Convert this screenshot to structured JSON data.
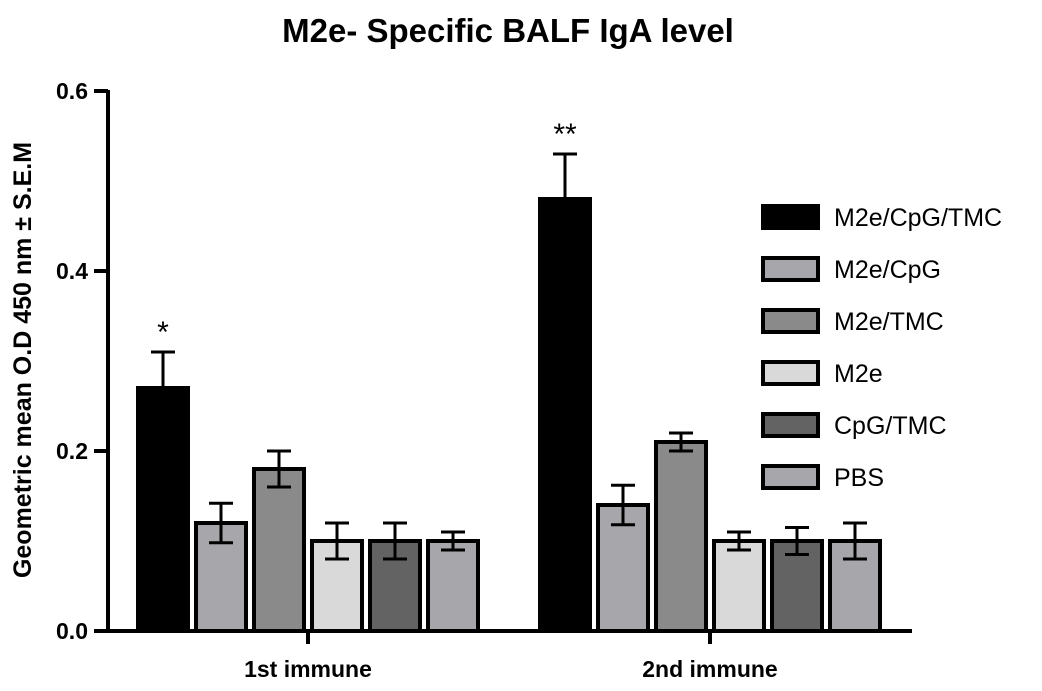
{
  "chart_data": {
    "type": "bar",
    "title": "M2e- Specific BALF IgA level",
    "xlabel": "",
    "ylabel": "Geometric mean O.D 450 nm ± S.E.M",
    "ylim": [
      0,
      0.6
    ],
    "yticks": [
      0.0,
      0.2,
      0.4,
      0.6
    ],
    "ytick_labels": [
      "0.0",
      "0.2",
      "0.4",
      "0.6"
    ],
    "grid": false,
    "legend_position": "right",
    "categories": [
      "1st immune",
      "2nd immune"
    ],
    "series": [
      {
        "name": "M2e/CpG/TMC",
        "color": "#000000",
        "values": [
          0.27,
          0.48
        ],
        "errors": [
          0.04,
          0.05
        ]
      },
      {
        "name": "M2e/CpG",
        "color": "#a6a6ab",
        "values": [
          0.12,
          0.14
        ],
        "errors": [
          0.022,
          0.022
        ]
      },
      {
        "name": "M2e/TMC",
        "color": "#8a8a8a",
        "values": [
          0.18,
          0.21
        ],
        "errors": [
          0.02,
          0.01
        ]
      },
      {
        "name": "M2e",
        "color": "#d9d9d9",
        "values": [
          0.1,
          0.1
        ],
        "errors": [
          0.02,
          0.01
        ]
      },
      {
        "name": "CpG/TMC",
        "color": "#636363",
        "values": [
          0.1,
          0.1
        ],
        "errors": [
          0.02,
          0.015
        ]
      },
      {
        "name": "PBS",
        "color": "#a6a6ab",
        "values": [
          0.1,
          0.1
        ],
        "errors": [
          0.01,
          0.02
        ]
      }
    ],
    "annotations": [
      {
        "text": "*",
        "category": "1st immune",
        "series": "M2e/CpG/TMC"
      },
      {
        "text": "**",
        "category": "2nd immune",
        "series": "M2e/CpG/TMC"
      }
    ]
  }
}
